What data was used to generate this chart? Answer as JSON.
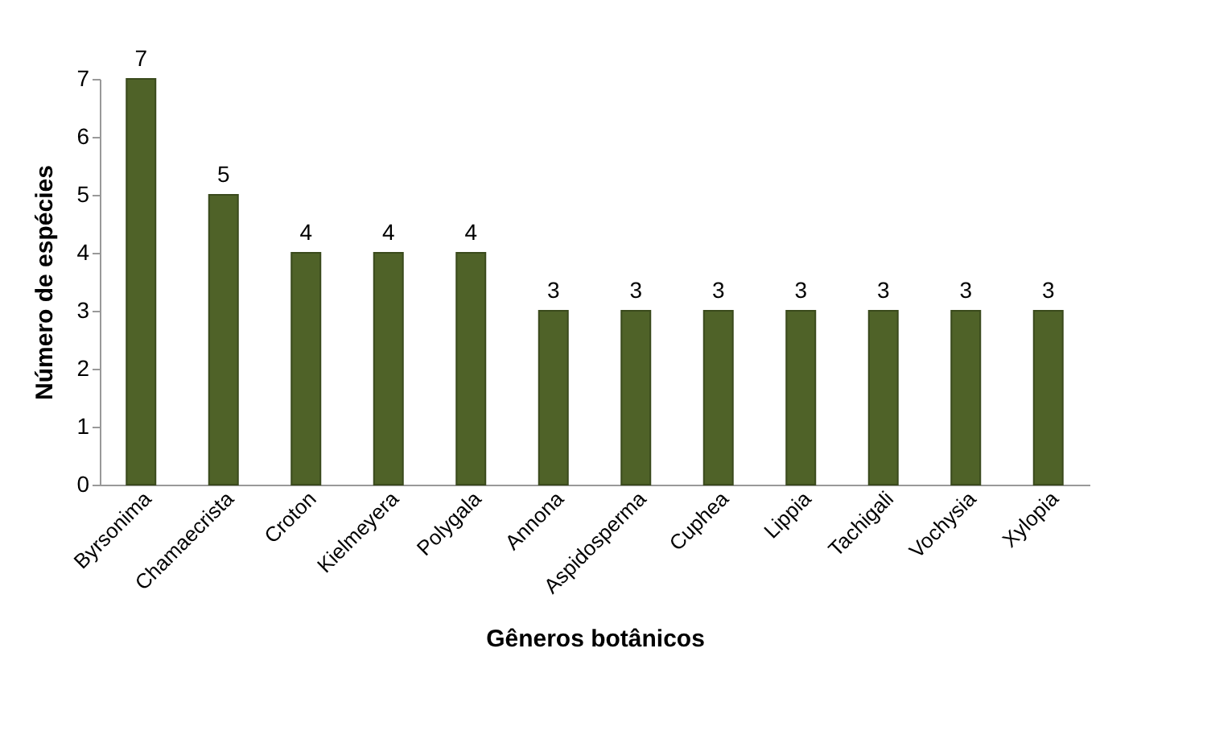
{
  "chart_data": {
    "type": "bar",
    "xlabel": "Gêneros botânicos",
    "ylabel": "Número de espécies",
    "categories": [
      "Byrsonima",
      "Chamaecrista",
      "Croton",
      "Kielmeyera",
      "Polygala",
      "Annona",
      "Aspidosperma",
      "Cuphea",
      "Lippia",
      "Tachigali",
      "Vochysia",
      "Xylopia"
    ],
    "values": [
      7,
      5,
      4,
      4,
      4,
      3,
      3,
      3,
      3,
      3,
      3,
      3
    ],
    "color": "#4f6228",
    "ylim": [
      0,
      7
    ],
    "yticks": [
      0,
      1,
      2,
      3,
      4,
      5,
      6,
      7
    ],
    "data_labels": true,
    "grid": false
  }
}
